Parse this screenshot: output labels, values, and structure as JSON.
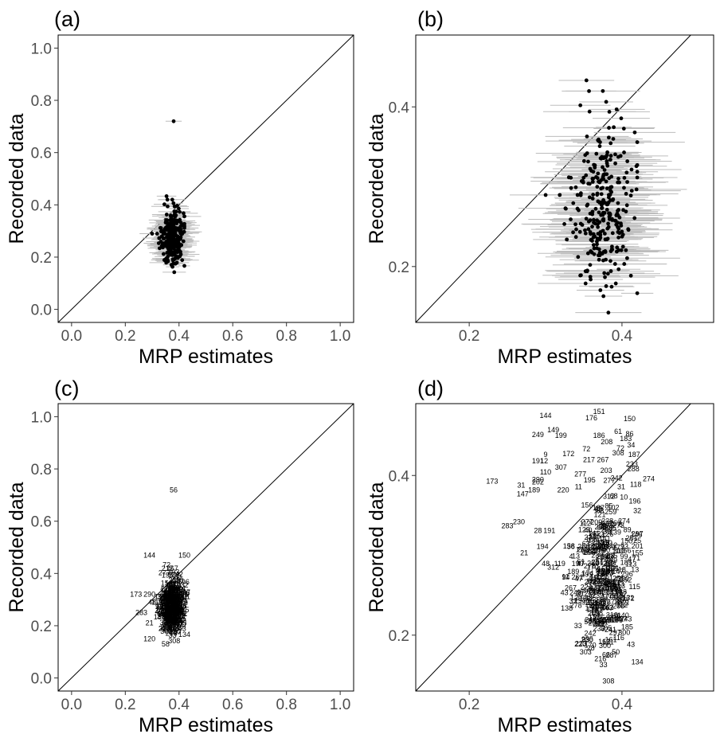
{
  "chart_data": [
    {
      "panel": "(a)",
      "type": "scatter",
      "style": "points-with-error-bars",
      "xlabel": "MRP estimates",
      "ylabel": "Recorded data",
      "xlim": [
        -0.05,
        1.05
      ],
      "ylim": [
        -0.05,
        1.05
      ],
      "xticks": [
        "0.0",
        "0.2",
        "0.4",
        "0.6",
        "0.8",
        "1.0"
      ],
      "yticks": [
        "0.0",
        "0.2",
        "0.4",
        "0.6",
        "0.8",
        "1.0"
      ],
      "reference_line": "y = x",
      "highlight_point": {
        "x": 0.38,
        "y": 0.72
      },
      "cluster": {
        "n_points": 300,
        "x_range": [
          0.23,
          0.42
        ],
        "y_range": [
          0.13,
          0.52
        ],
        "x_center": 0.375,
        "y_center": 0.265
      }
    },
    {
      "panel": "(b)",
      "type": "scatter",
      "style": "points-with-error-bars",
      "xlabel": "MRP estimates",
      "ylabel": "Recorded data",
      "xlim": [
        0.13,
        0.52
      ],
      "ylim": [
        0.13,
        0.49
      ],
      "xticks": [
        "0.2",
        "0.4"
      ],
      "yticks": [
        "0.2",
        "0.4"
      ],
      "reference_line": "y = x",
      "cluster": {
        "n_points": 300,
        "x_range": [
          0.23,
          0.42
        ],
        "y_range": [
          0.155,
          0.48
        ],
        "x_center": 0.375,
        "y_center": 0.265
      }
    },
    {
      "panel": "(c)",
      "type": "scatter",
      "style": "numbered-labels",
      "xlabel": "MRP estimates",
      "ylabel": "Recorded data",
      "xlim": [
        -0.05,
        1.05
      ],
      "ylim": [
        -0.05,
        1.05
      ],
      "xticks": [
        "0.0",
        "0.2",
        "0.4",
        "0.6",
        "0.8",
        "1.0"
      ],
      "yticks": [
        "0.0",
        "0.2",
        "0.4",
        "0.6",
        "0.8",
        "1.0"
      ],
      "reference_line": "y = x",
      "labeled_points": [
        {
          "label": "56",
          "x": 0.38,
          "y": 0.72
        },
        {
          "label": "144",
          "x": 0.29,
          "y": 0.47
        },
        {
          "label": "150",
          "x": 0.42,
          "y": 0.47
        },
        {
          "label": "173",
          "x": 0.24,
          "y": 0.32
        },
        {
          "label": "120",
          "x": 0.29,
          "y": 0.15
        },
        {
          "label": "58",
          "x": 0.35,
          "y": 0.13
        },
        {
          "label": "21",
          "x": 0.29,
          "y": 0.21
        },
        {
          "label": "283",
          "x": 0.26,
          "y": 0.25
        },
        {
          "label": "290",
          "x": 0.29,
          "y": 0.32
        }
      ]
    },
    {
      "panel": "(d)",
      "type": "scatter",
      "style": "numbered-labels",
      "xlabel": "MRP estimates",
      "ylabel": "Recorded data",
      "xlim": [
        0.13,
        0.52
      ],
      "ylim": [
        0.13,
        0.49
      ],
      "xticks": [
        "0.2",
        "0.4"
      ],
      "yticks": [
        "0.2",
        "0.4"
      ],
      "reference_line": "y = x",
      "labeled_points": [
        {
          "label": "144",
          "x": 0.3,
          "y": 0.475
        },
        {
          "label": "151",
          "x": 0.37,
          "y": 0.48
        },
        {
          "label": "176",
          "x": 0.36,
          "y": 0.472
        },
        {
          "label": "150",
          "x": 0.41,
          "y": 0.471
        },
        {
          "label": "149",
          "x": 0.31,
          "y": 0.457
        },
        {
          "label": "249",
          "x": 0.29,
          "y": 0.451
        },
        {
          "label": "199",
          "x": 0.32,
          "y": 0.45
        },
        {
          "label": "186",
          "x": 0.37,
          "y": 0.45
        },
        {
          "label": "61",
          "x": 0.395,
          "y": 0.455
        },
        {
          "label": "86",
          "x": 0.41,
          "y": 0.452
        },
        {
          "label": "183",
          "x": 0.405,
          "y": 0.446
        },
        {
          "label": "208",
          "x": 0.38,
          "y": 0.442
        },
        {
          "label": "34",
          "x": 0.412,
          "y": 0.438
        },
        {
          "label": "72",
          "x": 0.398,
          "y": 0.434
        },
        {
          "label": "308",
          "x": 0.395,
          "y": 0.428
        },
        {
          "label": "187",
          "x": 0.416,
          "y": 0.426
        },
        {
          "label": "172",
          "x": 0.33,
          "y": 0.427
        },
        {
          "label": "9",
          "x": 0.3,
          "y": 0.426
        },
        {
          "label": "191",
          "x": 0.29,
          "y": 0.418
        },
        {
          "label": "12",
          "x": 0.298,
          "y": 0.418
        },
        {
          "label": "233",
          "x": 0.413,
          "y": 0.414
        },
        {
          "label": "288",
          "x": 0.415,
          "y": 0.408
        },
        {
          "label": "307",
          "x": 0.32,
          "y": 0.41
        },
        {
          "label": "110",
          "x": 0.3,
          "y": 0.404
        },
        {
          "label": "274",
          "x": 0.435,
          "y": 0.396
        },
        {
          "label": "173",
          "x": 0.23,
          "y": 0.393
        },
        {
          "label": "31",
          "x": 0.268,
          "y": 0.388
        },
        {
          "label": "290",
          "x": 0.29,
          "y": 0.395
        },
        {
          "label": "202",
          "x": 0.29,
          "y": 0.392
        },
        {
          "label": "118",
          "x": 0.418,
          "y": 0.389
        },
        {
          "label": "11",
          "x": 0.343,
          "y": 0.386
        },
        {
          "label": "189",
          "x": 0.285,
          "y": 0.382
        },
        {
          "label": "220",
          "x": 0.323,
          "y": 0.382
        },
        {
          "label": "147",
          "x": 0.27,
          "y": 0.377
        },
        {
          "label": "230",
          "x": 0.265,
          "y": 0.342
        },
        {
          "label": "283",
          "x": 0.25,
          "y": 0.337
        },
        {
          "label": "28",
          "x": 0.29,
          "y": 0.331
        },
        {
          "label": "191",
          "x": 0.305,
          "y": 0.331
        },
        {
          "label": "194",
          "x": 0.296,
          "y": 0.311
        },
        {
          "label": "21",
          "x": 0.272,
          "y": 0.303
        },
        {
          "label": "155",
          "x": 0.42,
          "y": 0.303
        },
        {
          "label": "13",
          "x": 0.417,
          "y": 0.282
        },
        {
          "label": "216",
          "x": 0.365,
          "y": 0.271
        },
        {
          "label": "312",
          "x": 0.31,
          "y": 0.285
        },
        {
          "label": "18",
          "x": 0.4,
          "y": 0.282
        }
      ]
    }
  ]
}
